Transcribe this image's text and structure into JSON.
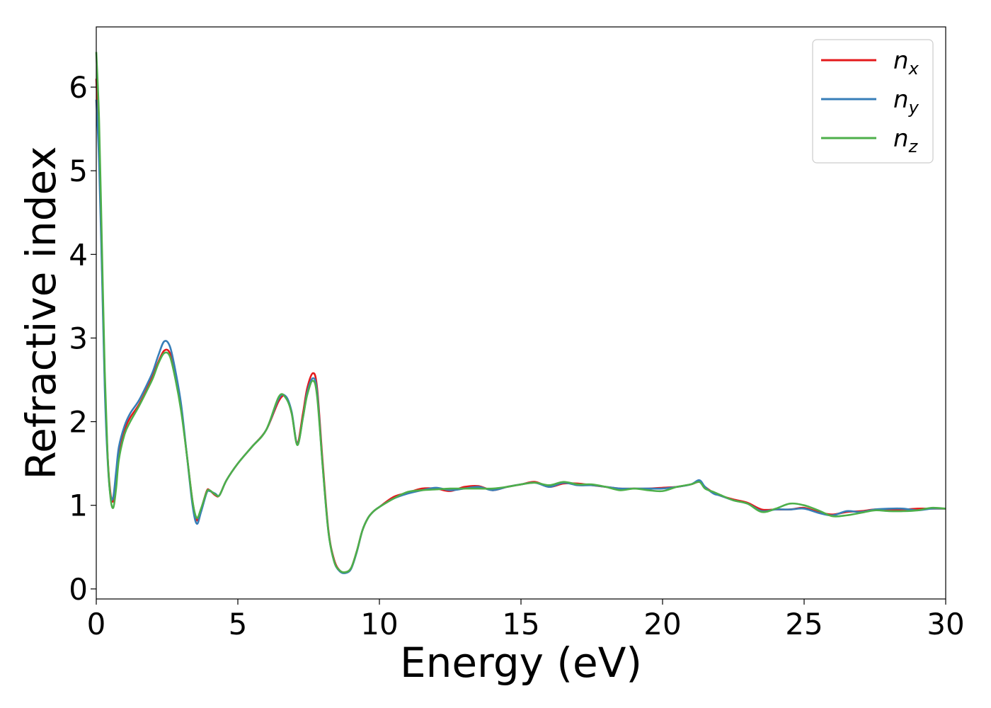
{
  "chart_data": {
    "type": "line",
    "xlabel": "Energy (eV)",
    "ylabel": "Refractive index",
    "xlim": [
      0,
      30
    ],
    "ylim": [
      -0.12,
      6.72
    ],
    "xticks": [
      0,
      5,
      10,
      15,
      20,
      25,
      30
    ],
    "yticks": [
      0,
      1,
      2,
      3,
      4,
      5,
      6
    ],
    "xtick_labels": [
      "0",
      "5",
      "10",
      "15",
      "20",
      "25",
      "30"
    ],
    "ytick_labels": [
      "0",
      "1",
      "2",
      "3",
      "4",
      "5",
      "6"
    ],
    "grid": false,
    "legend_position": "top-right",
    "series": [
      {
        "name": "n_x",
        "label_main": "n",
        "label_sub": "x",
        "color": "#e41a1c",
        "x": [
          0,
          0.1,
          0.2,
          0.3,
          0.4,
          0.5,
          0.6,
          0.7,
          0.8,
          1.0,
          1.2,
          1.5,
          1.8,
          2.0,
          2.2,
          2.4,
          2.6,
          2.8,
          3.0,
          3.2,
          3.4,
          3.55,
          3.7,
          3.9,
          4.0,
          4.2,
          4.35,
          4.6,
          5.0,
          5.5,
          6.0,
          6.45,
          6.7,
          6.9,
          7.1,
          7.3,
          7.45,
          7.65,
          7.8,
          8.0,
          8.2,
          8.4,
          8.6,
          8.8,
          9.0,
          9.2,
          9.4,
          9.6,
          9.8,
          10.0,
          10.5,
          11.0,
          11.5,
          12.0,
          12.5,
          13.0,
          13.5,
          14.0,
          14.5,
          15.0,
          15.5,
          16.0,
          16.5,
          17.0,
          17.5,
          18.0,
          18.5,
          19.0,
          19.5,
          20.0,
          20.5,
          21.0,
          21.3,
          21.5,
          21.8,
          22.0,
          22.5,
          23.0,
          23.5,
          24.0,
          24.5,
          25.0,
          25.5,
          26.0,
          26.5,
          27.0,
          27.5,
          28.0,
          28.5,
          29.0,
          29.5,
          30.0
        ],
        "y": [
          6.1,
          5.3,
          3.9,
          2.5,
          1.6,
          1.15,
          1.05,
          1.3,
          1.6,
          1.9,
          2.05,
          2.2,
          2.4,
          2.55,
          2.72,
          2.85,
          2.82,
          2.55,
          2.15,
          1.6,
          1.05,
          0.82,
          0.95,
          1.17,
          1.18,
          1.12,
          1.12,
          1.3,
          1.5,
          1.7,
          1.9,
          2.25,
          2.3,
          2.1,
          1.75,
          2.1,
          2.4,
          2.58,
          2.4,
          1.5,
          0.7,
          0.35,
          0.22,
          0.2,
          0.25,
          0.45,
          0.7,
          0.85,
          0.93,
          0.98,
          1.1,
          1.15,
          1.2,
          1.2,
          1.17,
          1.22,
          1.23,
          1.18,
          1.22,
          1.25,
          1.28,
          1.22,
          1.26,
          1.26,
          1.24,
          1.22,
          1.2,
          1.2,
          1.2,
          1.21,
          1.22,
          1.25,
          1.28,
          1.22,
          1.15,
          1.12,
          1.07,
          1.03,
          0.95,
          0.95,
          0.95,
          0.97,
          0.92,
          0.89,
          0.92,
          0.93,
          0.95,
          0.95,
          0.95,
          0.96,
          0.96,
          0.96
        ]
      },
      {
        "name": "n_y",
        "label_main": "n",
        "label_sub": "y",
        "color": "#377eb8",
        "x": [
          0,
          0.1,
          0.2,
          0.3,
          0.4,
          0.5,
          0.6,
          0.7,
          0.8,
          1.0,
          1.2,
          1.5,
          1.8,
          2.0,
          2.2,
          2.4,
          2.6,
          2.8,
          3.0,
          3.2,
          3.4,
          3.55,
          3.7,
          3.9,
          4.0,
          4.2,
          4.35,
          4.6,
          5.0,
          5.5,
          6.0,
          6.45,
          6.7,
          6.9,
          7.1,
          7.3,
          7.45,
          7.65,
          7.8,
          8.0,
          8.2,
          8.4,
          8.6,
          8.8,
          9.0,
          9.2,
          9.4,
          9.6,
          9.8,
          10.0,
          10.5,
          11.0,
          11.5,
          12.0,
          12.5,
          13.0,
          13.5,
          14.0,
          14.5,
          15.0,
          15.5,
          16.0,
          16.5,
          17.0,
          17.5,
          18.0,
          18.5,
          19.0,
          19.5,
          20.0,
          20.5,
          21.0,
          21.3,
          21.5,
          21.8,
          22.0,
          22.5,
          23.0,
          23.5,
          24.0,
          24.5,
          25.0,
          25.5,
          26.0,
          26.5,
          27.0,
          27.5,
          28.0,
          28.5,
          29.0,
          29.5,
          30.0
        ],
        "y": [
          5.85,
          5.1,
          3.8,
          2.4,
          1.55,
          1.12,
          1.1,
          1.4,
          1.7,
          1.95,
          2.1,
          2.25,
          2.45,
          2.6,
          2.8,
          2.96,
          2.9,
          2.6,
          2.2,
          1.6,
          1.0,
          0.78,
          0.92,
          1.15,
          1.17,
          1.14,
          1.12,
          1.3,
          1.5,
          1.7,
          1.9,
          2.28,
          2.3,
          2.12,
          1.73,
          2.05,
          2.35,
          2.52,
          2.35,
          1.45,
          0.68,
          0.33,
          0.21,
          0.19,
          0.24,
          0.44,
          0.7,
          0.85,
          0.93,
          0.98,
          1.08,
          1.14,
          1.18,
          1.21,
          1.18,
          1.2,
          1.22,
          1.18,
          1.22,
          1.25,
          1.27,
          1.22,
          1.27,
          1.24,
          1.24,
          1.22,
          1.2,
          1.2,
          1.2,
          1.2,
          1.22,
          1.25,
          1.3,
          1.22,
          1.14,
          1.12,
          1.06,
          1.02,
          0.93,
          0.95,
          0.95,
          0.96,
          0.91,
          0.88,
          0.93,
          0.92,
          0.95,
          0.96,
          0.96,
          0.94,
          0.96,
          0.96
        ]
      },
      {
        "name": "n_z",
        "label_main": "n",
        "label_sub": "z",
        "color": "#4daf4a",
        "x": [
          0,
          0.1,
          0.2,
          0.3,
          0.4,
          0.5,
          0.6,
          0.7,
          0.8,
          1.0,
          1.2,
          1.5,
          1.8,
          2.0,
          2.2,
          2.4,
          2.6,
          2.8,
          3.0,
          3.2,
          3.4,
          3.55,
          3.7,
          3.9,
          4.0,
          4.2,
          4.35,
          4.6,
          5.0,
          5.5,
          6.0,
          6.45,
          6.7,
          6.9,
          7.1,
          7.3,
          7.45,
          7.65,
          7.8,
          8.0,
          8.2,
          8.4,
          8.6,
          8.8,
          9.0,
          9.2,
          9.4,
          9.6,
          9.8,
          10.0,
          10.5,
          11.0,
          11.5,
          12.0,
          12.5,
          13.0,
          13.5,
          14.0,
          14.5,
          15.0,
          15.5,
          16.0,
          16.5,
          17.0,
          17.5,
          18.0,
          18.5,
          19.0,
          19.5,
          20.0,
          20.5,
          21.0,
          21.3,
          21.5,
          21.8,
          22.0,
          22.5,
          23.0,
          23.5,
          24.0,
          24.5,
          25.0,
          25.5,
          26.0,
          26.5,
          27.0,
          27.5,
          28.0,
          28.5,
          29.0,
          29.5,
          30.0
        ],
        "y": [
          6.42,
          5.6,
          4.1,
          2.6,
          1.6,
          1.1,
          0.97,
          1.2,
          1.55,
          1.85,
          2.0,
          2.18,
          2.38,
          2.52,
          2.7,
          2.82,
          2.78,
          2.5,
          2.12,
          1.6,
          1.05,
          0.85,
          0.96,
          1.16,
          1.18,
          1.13,
          1.12,
          1.3,
          1.5,
          1.7,
          1.9,
          2.3,
          2.28,
          2.1,
          1.72,
          2.05,
          2.32,
          2.49,
          2.3,
          1.45,
          0.68,
          0.33,
          0.22,
          0.2,
          0.25,
          0.45,
          0.7,
          0.85,
          0.93,
          0.98,
          1.08,
          1.16,
          1.18,
          1.19,
          1.2,
          1.2,
          1.2,
          1.2,
          1.22,
          1.25,
          1.27,
          1.24,
          1.28,
          1.25,
          1.25,
          1.22,
          1.18,
          1.2,
          1.18,
          1.17,
          1.22,
          1.25,
          1.28,
          1.2,
          1.16,
          1.13,
          1.06,
          1.02,
          0.92,
          0.96,
          1.02,
          1.0,
          0.94,
          0.87,
          0.88,
          0.91,
          0.94,
          0.93,
          0.93,
          0.94,
          0.97,
          0.96
        ]
      }
    ]
  }
}
